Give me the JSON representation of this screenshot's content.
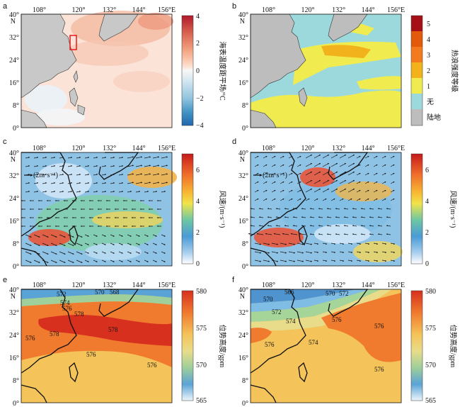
{
  "panels": [
    {
      "letter": "a"
    },
    {
      "letter": "b"
    },
    {
      "letter": "c"
    },
    {
      "letter": "d"
    },
    {
      "letter": "e"
    },
    {
      "letter": "f"
    }
  ],
  "lon_ticks": [
    "108°",
    "120°",
    "132°",
    "144°",
    "156°E"
  ],
  "lat_ticks": [
    "40°",
    "32°",
    "24°",
    "16°",
    "8°",
    "0°"
  ],
  "lat_n_label": "N",
  "colorbars": {
    "sst": {
      "title": "海表温度距平场/°C",
      "ticks": [
        "4",
        "2",
        "0",
        "−2",
        "−4"
      ],
      "colors": [
        "#b2182b",
        "#d6604d",
        "#f4a582",
        "#fddbc7",
        "#f7f7f7",
        "#d1e5f0",
        "#92c5de",
        "#4393c3",
        "#2166ac"
      ]
    },
    "heatwave": {
      "title": "热浪强度等级",
      "categories": [
        "5",
        "4",
        "3",
        "2",
        "1",
        "无",
        "陆地"
      ],
      "colors": [
        "#a50f15",
        "#e35a0b",
        "#f47a1e",
        "#f2b21b",
        "#f0ec4f",
        "#9cd9dd",
        "#bdbdbd"
      ]
    },
    "wind_c": {
      "title": "风速/(m·s⁻¹)",
      "ticks": [
        "6",
        "4",
        "2",
        "0"
      ]
    },
    "wind_d": {
      "title": "风速/(m·s⁻¹)",
      "ticks": [
        "6",
        "4",
        "2",
        "0"
      ]
    },
    "gph_e": {
      "title": "位势高度/gpm",
      "ticks": [
        "580",
        "575",
        "570",
        "565"
      ]
    },
    "gph_f": {
      "title": "位势高度/gpm",
      "ticks": [
        "580",
        "575",
        "570",
        "565"
      ]
    }
  },
  "wind_reference": "(2m·s⁻¹)",
  "contour_labels_e": [
    "572",
    "570",
    "568",
    "574",
    "576",
    "578",
    "578",
    "578",
    "576",
    "576",
    "576"
  ],
  "contour_labels_f": [
    "566",
    "570",
    "572",
    "570",
    "572",
    "574",
    "576",
    "576",
    "576",
    "574",
    "576"
  ]
}
